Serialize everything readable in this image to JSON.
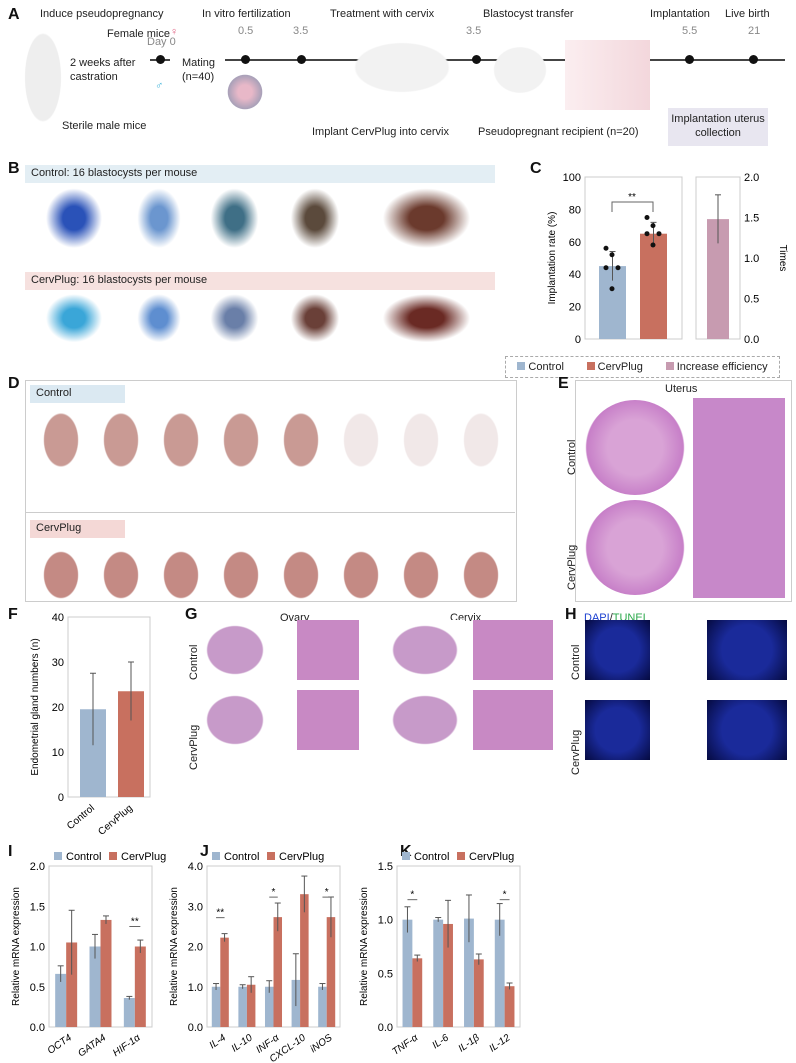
{
  "panel_labels": [
    "A",
    "B",
    "C",
    "D",
    "E",
    "F",
    "G",
    "H",
    "I",
    "J",
    "K"
  ],
  "A": {
    "steps": [
      "Induce pseudopregnancy",
      "In vitro fertilization",
      "Treatment with cervix",
      "Blastocyst transfer",
      "Implantation",
      "Live birth"
    ],
    "female": "Female mice",
    "male": "Sterile male mice",
    "castration": "2 weeks after castration",
    "mating": "Mating (n=40)",
    "timepoints": [
      "Day 0",
      "0.5",
      "3.5",
      "3.5",
      "5.5",
      "21"
    ],
    "implant": "Implant CervPlug into cervix",
    "recipient": "Pseudopregnant recipient (n=20)",
    "collection": "Implantation uterus collection"
  },
  "B": {
    "control_header": "Control: 16 blastocysts per mouse",
    "cervplug_header": "CervPlug: 16 blastocysts per mouse"
  },
  "D": {
    "control": "Control",
    "cervplug": "CervPlug"
  },
  "E": {
    "title": "Uterus",
    "control": "Control",
    "cervplug": "CervPlug"
  },
  "G": {
    "ovary": "Ovary",
    "cervix": "Cervix",
    "control": "Control",
    "cervplug": "CervPlug"
  },
  "H": {
    "dapi": "DAPI",
    "sep": "/",
    "tunel": "TUNEL",
    "control": "Control",
    "cervplug": "CervPlug"
  },
  "colors": {
    "control": "#9fb6cf",
    "cervplug": "#c8705f",
    "increase": "#c79bb0",
    "dapi": "#1a3fd0",
    "tunel": "#2aa84a"
  },
  "chart_data": [
    {
      "id": "C",
      "type": "bar",
      "categories": [
        "Control",
        "CervPlug"
      ],
      "values": [
        45,
        65
      ],
      "error": [
        9,
        7
      ],
      "points": [
        [
          56,
          52,
          44,
          44,
          31
        ],
        [
          75,
          70,
          65,
          65,
          58
        ]
      ],
      "ylabel": "Implantation rate (%)",
      "ylim": [
        0,
        100
      ],
      "yticks": [
        "0",
        "20",
        "40",
        "60",
        "80",
        "100"
      ],
      "significance": "**",
      "secondary": {
        "category": "Increase efficiency",
        "value": 1.48,
        "error": 0.3,
        "ylabel": "Times",
        "ylim": [
          0,
          2
        ],
        "yticks": [
          "0.0",
          "0.5",
          "1.0",
          "1.5",
          "2.0"
        ]
      },
      "legend": [
        "Control",
        "CervPlug",
        "Increase efficiency"
      ],
      "legend_position": "bottom"
    },
    {
      "id": "F",
      "type": "bar",
      "categories": [
        "Control",
        "CervPlug"
      ],
      "values": [
        19.5,
        23.5
      ],
      "error": [
        8,
        6.5
      ],
      "ylabel": "Endometrial gland numbers (n)",
      "ylim": [
        0,
        40
      ],
      "yticks": [
        "0",
        "10",
        "20",
        "30",
        "40"
      ]
    },
    {
      "id": "I",
      "type": "bar",
      "categories": [
        "OCT4",
        "GATA4",
        "HIF-1α"
      ],
      "series": [
        {
          "name": "Control",
          "values": [
            0.66,
            1.0,
            0.36
          ],
          "error": [
            0.1,
            0.15,
            0.02
          ]
        },
        {
          "name": "CervPlug",
          "values": [
            1.05,
            1.33,
            1.0
          ],
          "error": [
            0.4,
            0.05,
            0.08
          ]
        }
      ],
      "ylabel": "Relative mRNA expression",
      "ylim": [
        0,
        2
      ],
      "yticks": [
        "0.0",
        "0.5",
        "1.0",
        "1.5",
        "2.0"
      ],
      "significance": [
        "",
        "",
        "**"
      ],
      "legend_position": "top"
    },
    {
      "id": "J",
      "type": "bar",
      "categories": [
        "IL-4",
        "IL-10",
        "INF-α",
        "CXCL-10",
        "iNOS"
      ],
      "series": [
        {
          "name": "Control",
          "values": [
            1.0,
            1.0,
            1.0,
            1.17,
            1.0
          ],
          "error": [
            0.08,
            0.05,
            0.15,
            0.65,
            0.08
          ]
        },
        {
          "name": "CervPlug",
          "values": [
            2.22,
            1.05,
            2.73,
            3.3,
            2.73
          ],
          "error": [
            0.1,
            0.2,
            0.35,
            0.45,
            0.5
          ]
        }
      ],
      "ylabel": "Relative mRNA expression",
      "ylim": [
        0,
        4
      ],
      "yticks": [
        "0.0",
        "1.0",
        "2.0",
        "3.0",
        "4.0"
      ],
      "significance": [
        "**",
        "",
        "*",
        "",
        "*"
      ],
      "legend_position": "top"
    },
    {
      "id": "K",
      "type": "bar",
      "categories": [
        "TNF-α",
        "IL-6",
        "IL-1β",
        "IL-12"
      ],
      "series": [
        {
          "name": "Control",
          "values": [
            1.0,
            1.0,
            1.01,
            1.0
          ],
          "error": [
            0.12,
            0.02,
            0.22,
            0.15
          ]
        },
        {
          "name": "CervPlug",
          "values": [
            0.64,
            0.96,
            0.63,
            0.38
          ],
          "error": [
            0.03,
            0.22,
            0.05,
            0.03
          ]
        }
      ],
      "ylabel": "Relative mRNA expression",
      "ylim": [
        0,
        1.5
      ],
      "yticks": [
        "0.0",
        "0.5",
        "1.0",
        "1.5"
      ],
      "significance": [
        "*",
        "",
        "",
        "*"
      ],
      "legend_position": "top"
    }
  ]
}
